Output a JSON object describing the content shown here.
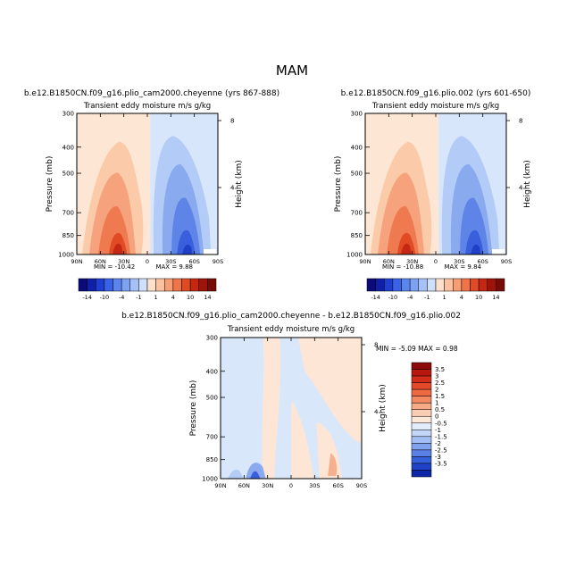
{
  "figure_title": "MAM",
  "chart_data": [
    {
      "type": "heatmap",
      "id": "left",
      "title": "b.e12.B1850CN.f09_g16.plio_cam2000.cheyenne (yrs 867-888)",
      "subtitle": "Transient eddy moisture m/s g/kg",
      "ylabel": "Pressure (mb)",
      "ylabel_right": "Height (km)",
      "x_ticks": [
        "90N",
        "60N",
        "30N",
        "0",
        "30S",
        "60S",
        "90S"
      ],
      "y_ticks": [
        "300",
        "400",
        "500",
        "700",
        "850",
        "1000"
      ],
      "y_right_ticks": [
        "8",
        "4"
      ],
      "ylim_mb": [
        1000,
        300
      ],
      "min_label": "MIN = -10.42",
      "max_label": "MAX = 9.88",
      "min": -10.42,
      "max": 9.88
    },
    {
      "type": "heatmap",
      "id": "right",
      "title": "b.e12.B1850CN.f09_g16.plio.002 (yrs 601-650)",
      "subtitle": "Transient eddy moisture m/s g/kg",
      "ylabel": "Pressure (mb)",
      "ylabel_right": "Height (km)",
      "x_ticks": [
        "90N",
        "60N",
        "30N",
        "0",
        "30S",
        "60S",
        "90S"
      ],
      "y_ticks": [
        "300",
        "400",
        "500",
        "700",
        "850",
        "1000"
      ],
      "y_right_ticks": [
        "8",
        "4"
      ],
      "ylim_mb": [
        1000,
        300
      ],
      "min_label": "MIN = -10.88",
      "max_label": "MAX = 9.84",
      "min": -10.88,
      "max": 9.84
    },
    {
      "type": "heatmap",
      "id": "diff",
      "title": "b.e12.B1850CN.f09_g16.plio_cam2000.cheyenne - b.e12.B1850CN.f09_g16.plio.002",
      "subtitle": "Transient eddy moisture m/s g/kg",
      "ylabel": "Pressure (mb)",
      "ylabel_right": "Height (km)",
      "x_ticks": [
        "90N",
        "60N",
        "30N",
        "0",
        "30S",
        "60S",
        "90S"
      ],
      "y_ticks": [
        "300",
        "400",
        "500",
        "700",
        "850",
        "1000"
      ],
      "y_right_ticks": [
        "8",
        "4"
      ],
      "ylim_mb": [
        1000,
        300
      ],
      "minmax_label": "MIN =   -5.09   MAX =   0.98",
      "min": -5.09,
      "max": 0.98
    }
  ],
  "colorbar_main": {
    "labels": [
      "-14",
      "-10",
      "-4",
      "-1",
      "1",
      "4",
      "10",
      "14"
    ],
    "colors": [
      "#0a0a7a",
      "#0f1fa8",
      "#1f3fd0",
      "#3a62e6",
      "#5a84ee",
      "#7ea2f3",
      "#a6c0f8",
      "#cfe0fb",
      "#fde1cc",
      "#fbc1a0",
      "#f79e74",
      "#ef7448",
      "#e04a25",
      "#c52812",
      "#9e130a",
      "#7a0a05"
    ]
  },
  "colorbar_diff": {
    "labels": [
      "3.5",
      "3",
      "2.5",
      "2",
      "1.5",
      "1",
      "0.5",
      "0",
      "-0.5",
      "-1",
      "-1.5",
      "-2",
      "-2.5",
      "-3",
      "-3.5"
    ],
    "colors": [
      "#8c0a0a",
      "#b8160f",
      "#d42c1a",
      "#e4492c",
      "#ef6a43",
      "#f48a62",
      "#f7aa86",
      "#fbcdb2",
      "#fde7d9",
      "#e2ecfb",
      "#c4d7f8",
      "#a3bff4",
      "#7fa1ee",
      "#5a80e6",
      "#3560db",
      "#1f42c8",
      "#0e26a8"
    ]
  }
}
